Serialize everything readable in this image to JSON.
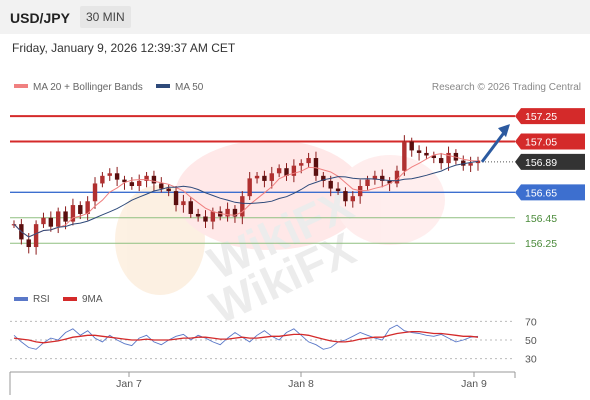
{
  "header": {
    "pair": "USD/JPY",
    "timeframe": "30 MIN",
    "datetime": "Friday, January 9, 2026 12:39:37 AM CET"
  },
  "legend": {
    "ma20_label": "MA 20 + Bollinger Bands",
    "ma50_label": "MA 50",
    "ma20_color": "#f08080",
    "ma50_color": "#2e4a7a",
    "credit": "Research © 2026 Trading Central"
  },
  "rsi_legend": {
    "rsi_label": "RSI",
    "ma_label": "9MA",
    "rsi_color": "#5a78c8",
    "ma_color": "#d42a2a"
  },
  "watermark": "WikiFX",
  "colors": {
    "resistance": "#d42a2a",
    "current": "#333333",
    "pivot": "#3d6fcf",
    "support": "#4a8a3a",
    "arrow": "#2c5aa0",
    "candle": "#8b1a1a"
  },
  "chart_data": [
    {
      "type": "candlestick",
      "title": "USD/JPY 30 MIN",
      "x_ticks": [
        "Jan 7",
        "Jan 8",
        "Jan 9"
      ],
      "ylim": [
        156.0,
        157.4
      ],
      "current_price": 156.89,
      "levels": [
        {
          "price": 157.25,
          "label": "157.25",
          "kind": "resistance"
        },
        {
          "price": 157.05,
          "label": "157.05",
          "kind": "resistance"
        },
        {
          "price": 156.89,
          "label": "156.89",
          "kind": "current"
        },
        {
          "price": 156.65,
          "label": "156.65",
          "kind": "pivot"
        },
        {
          "price": 156.45,
          "label": "156.45",
          "kind": "support"
        },
        {
          "price": 156.25,
          "label": "156.25",
          "kind": "support"
        }
      ],
      "close_path": [
        156.4,
        156.28,
        156.22,
        156.4,
        156.45,
        156.38,
        156.5,
        156.42,
        156.55,
        156.48,
        156.58,
        156.72,
        156.78,
        156.8,
        156.75,
        156.73,
        156.7,
        156.74,
        156.78,
        156.72,
        156.68,
        156.66,
        156.55,
        156.58,
        156.48,
        156.46,
        156.42,
        156.5,
        156.46,
        156.52,
        156.46,
        156.62,
        156.76,
        156.78,
        156.74,
        156.8,
        156.84,
        156.78,
        156.86,
        156.88,
        156.92,
        156.78,
        156.74,
        156.68,
        156.66,
        156.58,
        156.62,
        156.7,
        156.75,
        156.78,
        156.74,
        156.72,
        156.82,
        157.05,
        156.98,
        156.96,
        156.94,
        156.92,
        156.88,
        156.96,
        156.9,
        156.86,
        156.88,
        156.9
      ],
      "ma_label": "MA 20 + Bollinger Bands",
      "ma50_label": "MA 50",
      "forecast_target": 157.25
    },
    {
      "type": "line",
      "title": "RSI",
      "series": [
        {
          "name": "RSI",
          "values": [
            55,
            48,
            42,
            40,
            47,
            52,
            50,
            58,
            62,
            55,
            60,
            52,
            48,
            55,
            50,
            46,
            44,
            52,
            55,
            48,
            45,
            50,
            54,
            56,
            50,
            55,
            52,
            48,
            45,
            52,
            58,
            53,
            48,
            55,
            60,
            54,
            50,
            58,
            62,
            55,
            48,
            45,
            40,
            42,
            48,
            50,
            54,
            58,
            55,
            52,
            50,
            62,
            66,
            60,
            58,
            57,
            55,
            54,
            56,
            52,
            48,
            50,
            53,
            54
          ]
        },
        {
          "name": "9MA",
          "values": [
            52,
            51,
            50,
            48,
            47,
            48,
            49,
            51,
            53,
            54,
            55,
            55,
            54,
            53,
            52,
            51,
            50,
            50,
            51,
            50,
            50,
            50,
            51,
            52,
            52,
            53,
            53,
            52,
            51,
            51,
            52,
            53,
            52,
            52,
            53,
            54,
            54,
            55,
            56,
            56,
            55,
            53,
            51,
            49,
            48,
            48,
            49,
            51,
            52,
            53,
            53,
            55,
            57,
            58,
            59,
            59,
            58,
            57,
            57,
            56,
            55,
            54,
            54,
            53
          ]
        }
      ],
      "yticks": [
        30,
        50,
        70
      ],
      "ylim": [
        20,
        80
      ]
    }
  ]
}
